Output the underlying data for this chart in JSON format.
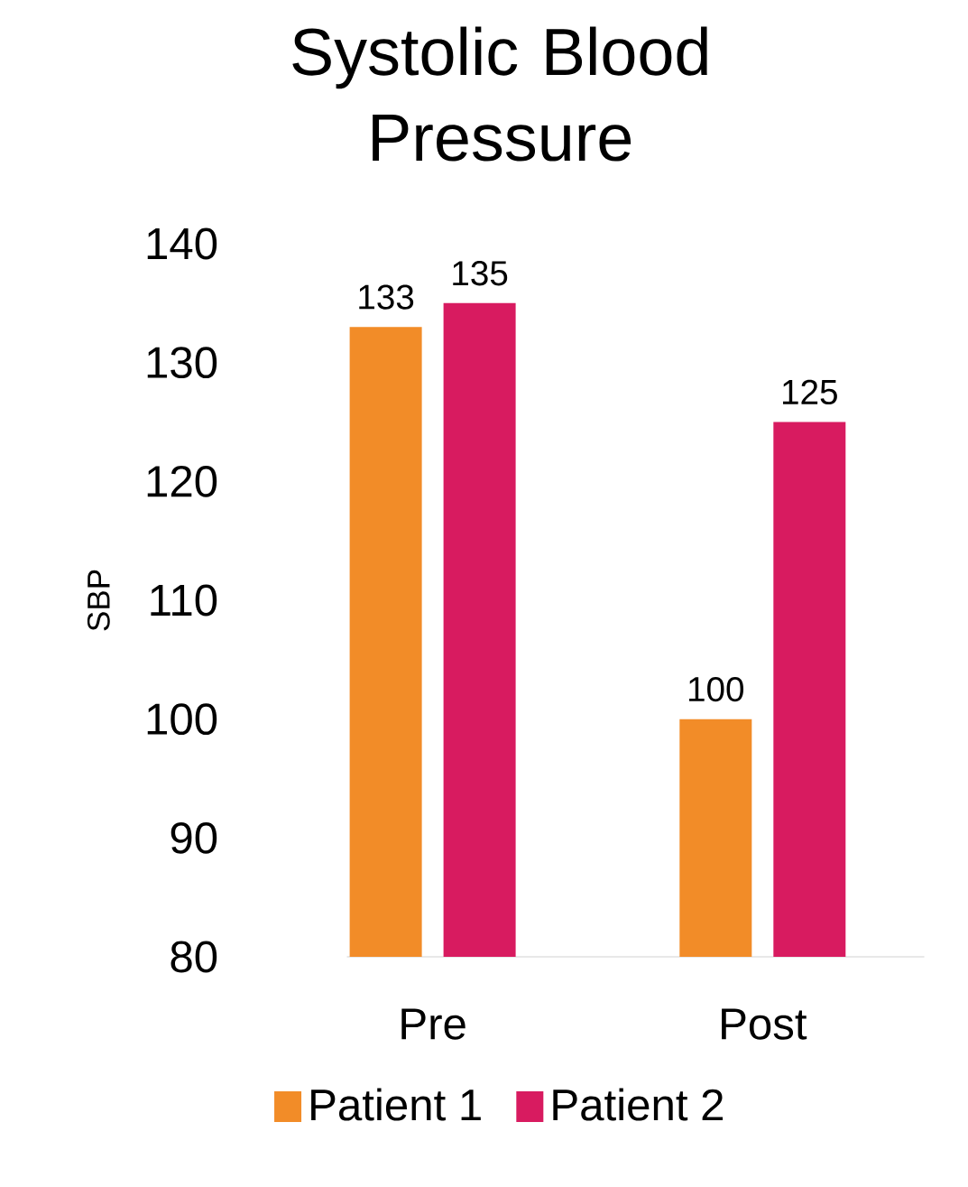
{
  "chart_data": {
    "type": "bar",
    "title": "Systolic Blood Pressure",
    "ylabel": "SBP",
    "categories": [
      "Pre",
      "Post"
    ],
    "series": [
      {
        "name": "Patient 1",
        "color": "#f28c28",
        "values": [
          133,
          100
        ]
      },
      {
        "name": "Patient 2",
        "color": "#d81b60",
        "values": [
          135,
          125
        ]
      }
    ],
    "ylim": [
      80,
      140
    ],
    "yticks": [
      80,
      90,
      100,
      110,
      120,
      130,
      140
    ],
    "data_labels": true,
    "legend": "bottom"
  }
}
